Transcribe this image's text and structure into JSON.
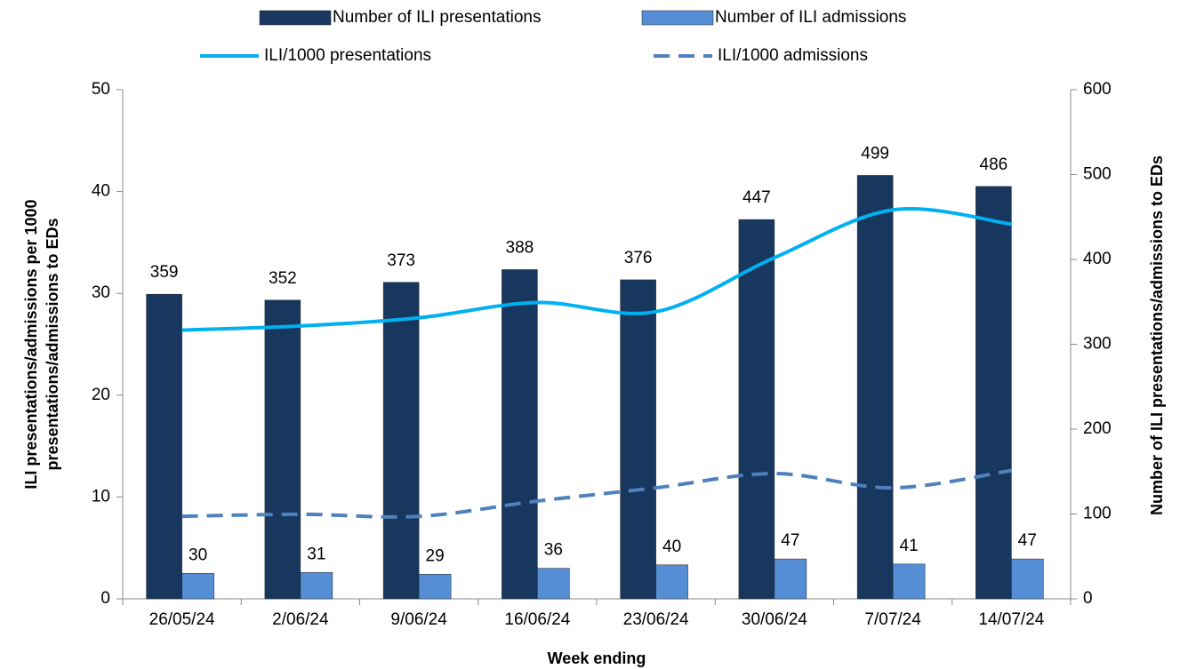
{
  "chart_data": {
    "type": "bar",
    "categories": [
      "26/05/24",
      "2/06/24",
      "9/06/24",
      "16/06/24",
      "23/06/24",
      "30/06/24",
      "7/07/24",
      "14/07/24"
    ],
    "x_label": "Week ending",
    "y_label": [
      "ILI presentations/admissions per 1000",
      "presentations/admissions to EDs"
    ],
    "y2_label": "Number of ILI presentations/admissions to EDs",
    "ylim": [
      0,
      50
    ],
    "yticks": [
      0,
      10,
      20,
      30,
      40,
      50
    ],
    "y2lim": [
      0,
      600
    ],
    "y2ticks": [
      0,
      100,
      200,
      300,
      400,
      500,
      600
    ],
    "series": [
      {
        "name": "Number of ILI presentations",
        "type": "bar",
        "axis": "y2",
        "color": "#17375e",
        "values": [
          359,
          352,
          373,
          388,
          376,
          447,
          499,
          486
        ]
      },
      {
        "name": "Number of ILI admissions",
        "type": "bar",
        "axis": "y2",
        "color": "#558ed5",
        "values": [
          30,
          31,
          29,
          36,
          40,
          47,
          41,
          47
        ]
      },
      {
        "name": "ILI/1000 presentations",
        "type": "line",
        "color": "#00b0f0",
        "values": [
          26.4,
          26.8,
          27.6,
          29.1,
          28.2,
          33.5,
          38.2,
          36.8
        ]
      },
      {
        "name": "ILI/1000 admissions",
        "type": "line",
        "dashed": true,
        "color": "#4f81bd",
        "values": [
          8.1,
          8.3,
          8.1,
          9.6,
          10.9,
          12.3,
          10.9,
          12.6
        ]
      }
    ]
  }
}
